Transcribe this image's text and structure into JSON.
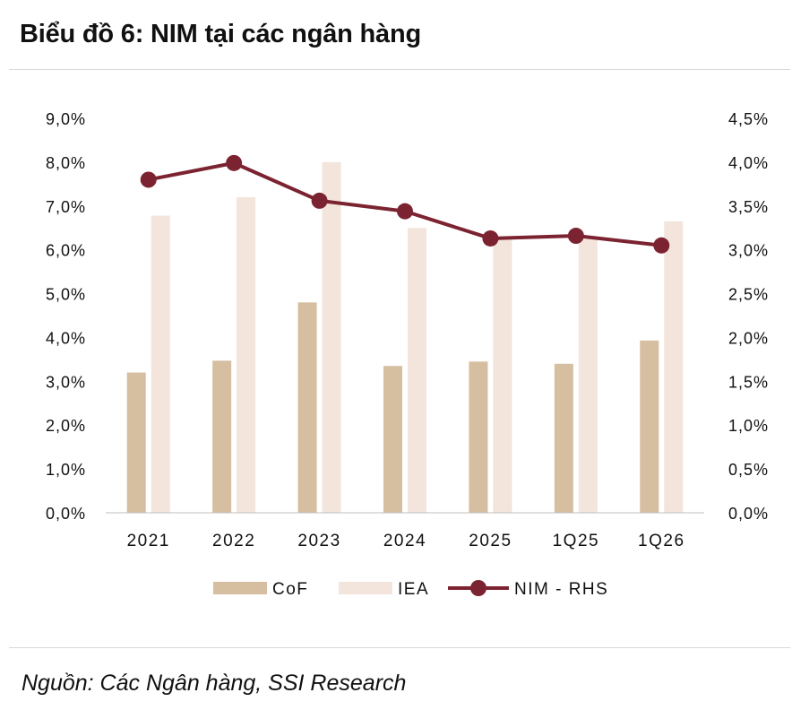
{
  "title": "Biểu đồ 6: NIM tại các ngân hàng",
  "source": "Nguồn: Các Ngân hàng, SSI Research",
  "chart_data": {
    "type": "bar",
    "categories": [
      "2021",
      "2022",
      "2023",
      "2024",
      "2025",
      "1Q25",
      "1Q26"
    ],
    "series": [
      {
        "name": "CoF",
        "kind": "bar",
        "axis": "left",
        "color": "#d6bea1",
        "values": [
          3.2,
          3.47,
          4.8,
          3.35,
          3.45,
          3.4,
          3.93
        ]
      },
      {
        "name": "IEA",
        "kind": "bar",
        "axis": "left",
        "color": "#f3e5dc",
        "values": [
          6.78,
          7.2,
          8.0,
          6.5,
          6.25,
          6.25,
          6.65
        ]
      },
      {
        "name": "NIM - RHS",
        "kind": "line",
        "axis": "right",
        "color": "#7b2330",
        "values": [
          3.8,
          3.99,
          3.56,
          3.44,
          3.13,
          3.16,
          3.05
        ]
      }
    ],
    "y_left": {
      "ticks": [
        "0,0%",
        "1,0%",
        "2,0%",
        "3,0%",
        "4,0%",
        "5,0%",
        "6,0%",
        "7,0%",
        "8,0%",
        "9,0%"
      ],
      "range": [
        0,
        9
      ]
    },
    "y_right": {
      "ticks": [
        "0,0%",
        "0,5%",
        "1,0%",
        "1,5%",
        "2,0%",
        "2,5%",
        "3,0%",
        "3,5%",
        "4,0%",
        "4,5%"
      ],
      "range": [
        0,
        4.5
      ]
    },
    "grid": false,
    "legend_position": "bottom"
  }
}
